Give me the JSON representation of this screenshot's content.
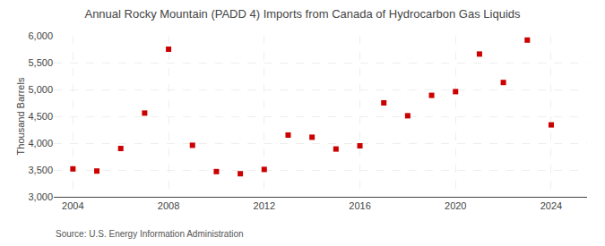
{
  "chart_data": {
    "type": "scatter",
    "title": "Annual Rocky Mountain (PADD 4) Imports from Canada of Hydrocarbon Gas Liquids",
    "ylabel": "Thousand Barrels",
    "annotations": [
      "Source: U.S. Energy Information Administration"
    ],
    "x": [
      2004,
      2005,
      2006,
      2007,
      2008,
      2009,
      2010,
      2011,
      2012,
      2013,
      2014,
      2015,
      2016,
      2017,
      2018,
      2019,
      2020,
      2021,
      2022,
      2023,
      2024
    ],
    "values": [
      3520,
      3480,
      3900,
      4560,
      5750,
      3960,
      3470,
      3430,
      3510,
      4150,
      4110,
      3890,
      3950,
      4750,
      4510,
      4890,
      4960,
      5660,
      5130,
      5920,
      4340
    ],
    "color": "#cc0000",
    "marker": "square",
    "xlim": [
      2003.2,
      2025.5
    ],
    "xticks": [
      2004,
      2008,
      2012,
      2016,
      2020,
      2024
    ],
    "ylim": [
      3000,
      6000
    ],
    "yticks": [
      {
        "value": 3000,
        "label": "3,000"
      },
      {
        "value": 3500,
        "label": "3,500"
      },
      {
        "value": 4000,
        "label": "4,000"
      },
      {
        "value": 4500,
        "label": "4,500"
      },
      {
        "value": 5000,
        "label": "5,000"
      },
      {
        "value": 5500,
        "label": "5,500"
      },
      {
        "value": 6000,
        "label": "6,000"
      }
    ],
    "grid": true
  }
}
